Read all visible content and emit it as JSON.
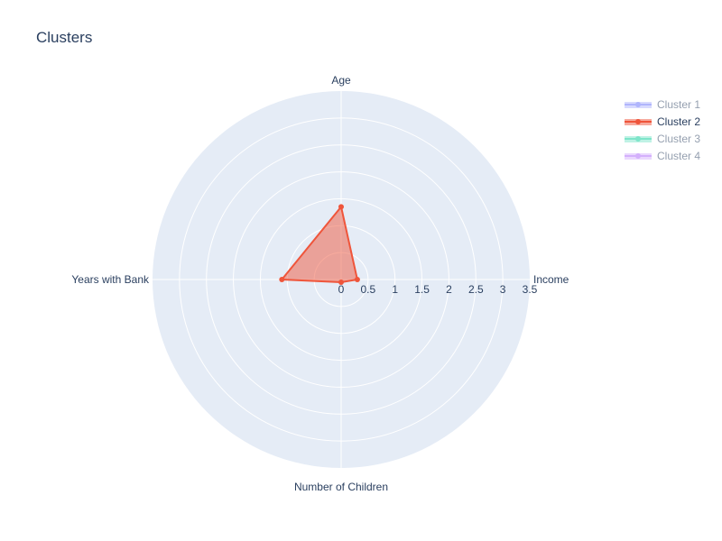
{
  "chart_data": {
    "type": "radar",
    "title": "Clusters",
    "axes": [
      "Income",
      "Age",
      "Years with Bank",
      "Number of Children"
    ],
    "radial_range": [
      0,
      3.5
    ],
    "radial_ticks": [
      "0",
      "0.5",
      "1",
      "1.5",
      "2",
      "2.5",
      "3",
      "3.5"
    ],
    "grid": true,
    "legend_position": "top-right",
    "series": [
      {
        "name": "Cluster 1",
        "visible": false,
        "color": "#636efa",
        "values": []
      },
      {
        "name": "Cluster 2",
        "visible": true,
        "color": "#ef553b",
        "values": [
          0.3,
          1.35,
          1.1,
          0.05
        ]
      },
      {
        "name": "Cluster 3",
        "visible": false,
        "color": "#00cc96",
        "values": []
      },
      {
        "name": "Cluster 4",
        "visible": false,
        "color": "#ab63fa",
        "values": []
      }
    ]
  },
  "colors": {
    "polar_bg": "#e5ecf6",
    "grid": "#ffffff",
    "text": "#2a3f5f"
  }
}
